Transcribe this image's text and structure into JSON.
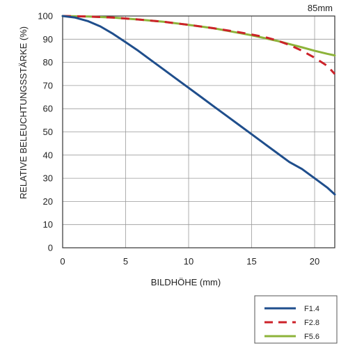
{
  "chart_data": {
    "type": "line",
    "title": "85mm",
    "xlabel": "BILDHÖHE (mm)",
    "ylabel": "RELATIVE BELEUCHTUNGSSTÄRKE  (%)",
    "xlim": [
      0,
      21.6
    ],
    "ylim": [
      0,
      100
    ],
    "xticks": [
      0,
      5,
      10,
      15,
      20
    ],
    "yticks": [
      0,
      10,
      20,
      30,
      40,
      50,
      60,
      70,
      80,
      90,
      100
    ],
    "grid": true,
    "legend_position": "bottom-right",
    "series": [
      {
        "name": "F1.4",
        "color": "#1f4e8c",
        "dash": "solid",
        "x": [
          0,
          1,
          2,
          3,
          4,
          5,
          6,
          7,
          8,
          9,
          10,
          11,
          12,
          13,
          14,
          15,
          16,
          17,
          18,
          19,
          20,
          21,
          21.6
        ],
        "y": [
          100,
          99.3,
          97.8,
          95.5,
          92.3,
          88.7,
          85,
          81,
          77,
          73,
          69,
          65,
          61,
          57,
          53,
          49,
          45,
          41,
          37,
          34,
          30,
          26,
          23
        ]
      },
      {
        "name": "F2.8",
        "color": "#cc2229",
        "dash": "dashed",
        "x": [
          0,
          2,
          4,
          6,
          8,
          10,
          12,
          14,
          15,
          16,
          17,
          18,
          19,
          20,
          21,
          21.6
        ],
        "y": [
          100,
          99.8,
          99.3,
          98.5,
          97.5,
          96.2,
          94.7,
          93,
          92,
          91,
          89.5,
          87.5,
          85,
          82,
          78.5,
          75
        ]
      },
      {
        "name": "F5.6",
        "color": "#8db33a",
        "dash": "solid",
        "x": [
          0,
          2,
          4,
          6,
          8,
          10,
          12,
          14,
          15,
          16,
          17,
          18,
          19,
          20,
          21,
          21.6
        ],
        "y": [
          100,
          99.8,
          99.3,
          98.5,
          97.5,
          96.2,
          94.7,
          92.7,
          91.7,
          90.5,
          89.3,
          87.9,
          86.5,
          85,
          83.7,
          83
        ]
      }
    ]
  }
}
